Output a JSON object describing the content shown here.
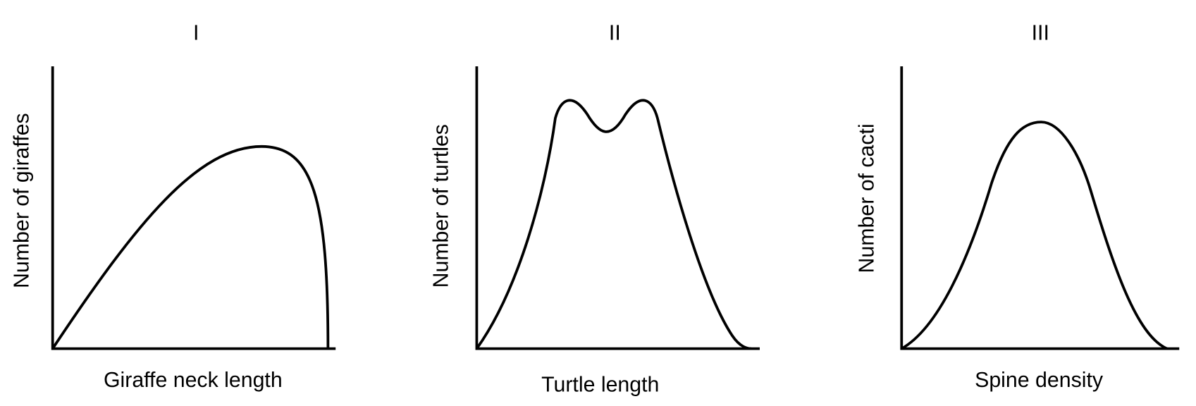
{
  "panels": [
    {
      "title": "I",
      "x_label": "Giraffe neck length",
      "y_label": "Number of giraffes"
    },
    {
      "title": "II",
      "x_label": "Turtle length",
      "y_label": "Number of turtles"
    },
    {
      "title": "III",
      "x_label": "Spine density",
      "y_label": "Number of cacti"
    }
  ]
}
